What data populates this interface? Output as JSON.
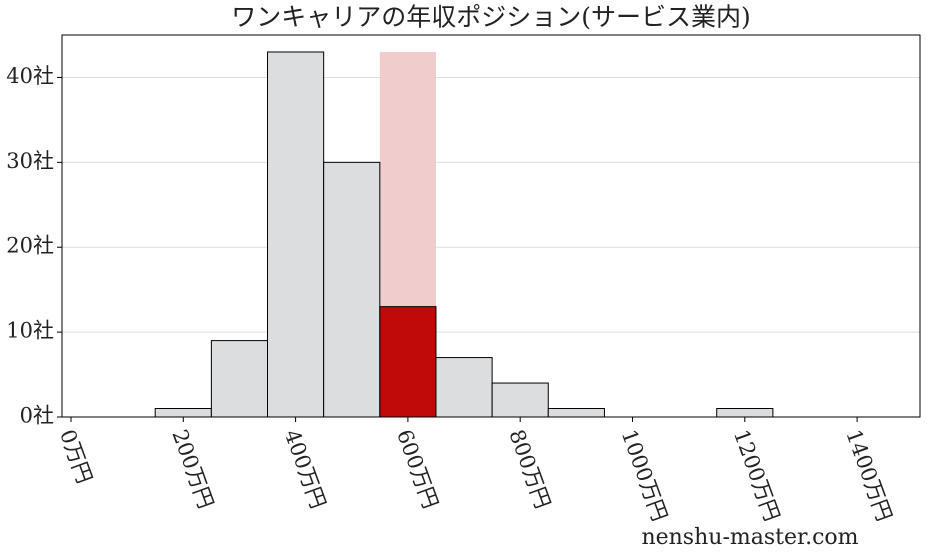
{
  "chart_data": {
    "type": "histogram",
    "title": "ワンキャリアの年収ポジション(サービス業内)",
    "watermark": "nenshu-master.com",
    "bins": [
      150,
      250,
      350,
      450,
      550,
      650,
      750,
      850,
      950,
      1050,
      1150,
      1250
    ],
    "counts": [
      1,
      9,
      43,
      30,
      13,
      7,
      4,
      1,
      0,
      0,
      1
    ],
    "color": "#dcdddf",
    "edge_color": "#000000",
    "highlight_bin": 4,
    "highlight_color": "#c00a0a",
    "highlight_band_color": "#f0cccc",
    "xlim": [
      -16,
      1512
    ],
    "ylim": [
      0,
      45
    ],
    "xticks": [
      {
        "value": 0,
        "label": "0万円"
      },
      {
        "value": 200,
        "label": "200万円"
      },
      {
        "value": 400,
        "label": "400万円"
      },
      {
        "value": 600,
        "label": "600万円"
      },
      {
        "value": 800,
        "label": "800万円"
      },
      {
        "value": 1000,
        "label": "1000万円"
      },
      {
        "value": 1200,
        "label": "1200万円"
      },
      {
        "value": 1400,
        "label": "1400万円"
      }
    ],
    "yticks": [
      {
        "value": 0,
        "label": "0社"
      },
      {
        "value": 10,
        "label": "10社"
      },
      {
        "value": 20,
        "label": "20社"
      },
      {
        "value": 30,
        "label": "30社"
      },
      {
        "value": 40,
        "label": "40社"
      }
    ],
    "grid": true
  }
}
